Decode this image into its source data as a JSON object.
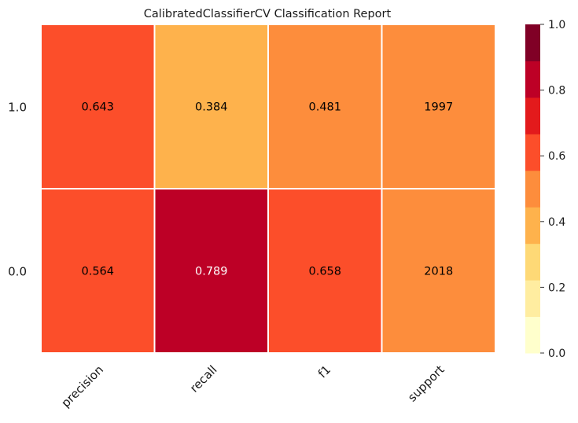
{
  "chart_data": {
    "type": "heatmap",
    "title": "CalibratedClassifierCV Classification Report",
    "xlabel": "",
    "ylabel": "",
    "columns": [
      "precision",
      "recall",
      "f1",
      "support"
    ],
    "rows": [
      "1.0",
      "0.0"
    ],
    "cell_labels": [
      [
        "0.643",
        "0.384",
        "0.481",
        "1997"
      ],
      [
        "0.564",
        "0.789",
        "0.658",
        "2018"
      ]
    ],
    "cell_values": [
      [
        0.643,
        0.384,
        0.481,
        0.5
      ],
      [
        0.564,
        0.789,
        0.658,
        0.5
      ]
    ],
    "colorbar": {
      "range": [
        0.0,
        1.0
      ],
      "ticks": [
        "0.0",
        "0.2",
        "0.4",
        "0.6",
        "0.8",
        "1.0"
      ],
      "tick_values": [
        0.0,
        0.2,
        0.4,
        0.6,
        0.8,
        1.0
      ],
      "colors": [
        "#ffffcc",
        "#ffeda0",
        "#fed976",
        "#feb24c",
        "#fd8d3c",
        "#fc4e2a",
        "#e31a1c",
        "#bd0026",
        "#800026"
      ]
    },
    "grid": false,
    "legend": "colorbar-right"
  }
}
